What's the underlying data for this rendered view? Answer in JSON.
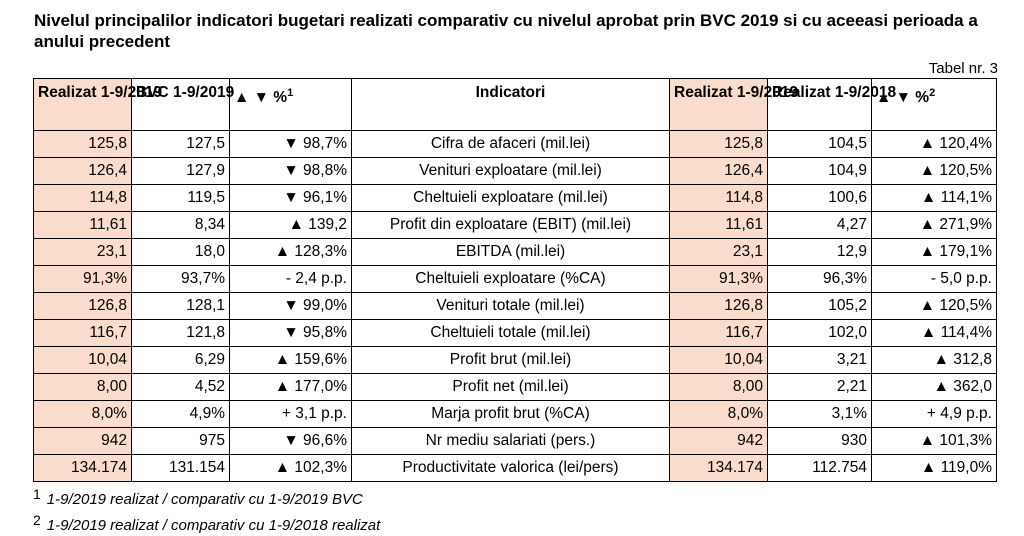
{
  "title": "Nivelul principalilor indicatori bugetari realizati comparativ cu nivelul aprobat prin BVC 2019 si cu aceeasi perioada a anului precedent",
  "table_label": "Tabel nr. 3",
  "headers": {
    "realizat": "Realizat 1-9/2019",
    "bvc": "BVC 1-9/2019",
    "pct1": "▲ ▼ %",
    "pct1_sup": "1",
    "indicatori": "Indicatori",
    "realizat2019": "Realizat 1-9/2019",
    "realizat2018": "Realizat 1-9/2018",
    "pct2": "▲ ▼ %",
    "pct2_sup": "2"
  },
  "rows": [
    {
      "r": "125,8",
      "bvc": "127,5",
      "p1": "▼ 98,7%",
      "ind": "Cifra de afaceri (mil.lei)",
      "r19": "125,8",
      "r18": "104,5",
      "p2": "▲ 120,4%"
    },
    {
      "r": "126,4",
      "bvc": "127,9",
      "p1": "▼ 98,8%",
      "ind": "Venituri exploatare (mil.lei)",
      "r19": "126,4",
      "r18": "104,9",
      "p2": "▲ 120,5%"
    },
    {
      "r": "114,8",
      "bvc": "119,5",
      "p1": "▼ 96,1%",
      "ind": "Cheltuieli exploatare (mil.lei)",
      "r19": "114,8",
      "r18": "100,6",
      "p2": "▲ 114,1%"
    },
    {
      "r": "11,61",
      "bvc": "8,34",
      "p1": "▲ 139,2",
      "ind": "Profit din exploatare (EBIT) (mil.lei)",
      "r19": "11,61",
      "r18": "4,27",
      "p2": "▲ 271,9%"
    },
    {
      "r": "23,1",
      "bvc": "18,0",
      "p1": "▲ 128,3%",
      "ind": "EBITDA (mil.lei)",
      "r19": "23,1",
      "r18": "12,9",
      "p2": "▲ 179,1%"
    },
    {
      "r": "91,3%",
      "bvc": "93,7%",
      "p1": "- 2,4 p.p.",
      "ind": "Cheltuieli exploatare (%CA)",
      "r19": "91,3%",
      "r18": "96,3%",
      "p2": "- 5,0 p.p."
    },
    {
      "r": "126,8",
      "bvc": "128,1",
      "p1": "▼ 99,0%",
      "ind": "Venituri totale (mil.lei)",
      "r19": "126,8",
      "r18": "105,2",
      "p2": "▲ 120,5%"
    },
    {
      "r": "116,7",
      "bvc": "121,8",
      "p1": "▼ 95,8%",
      "ind": "Cheltuieli totale (mil.lei)",
      "r19": "116,7",
      "r18": "102,0",
      "p2": "▲ 114,4%"
    },
    {
      "r": "10,04",
      "bvc": "6,29",
      "p1": "▲ 159,6%",
      "ind": "Profit brut (mil.lei)",
      "r19": "10,04",
      "r18": "3,21",
      "p2": "▲ 312,8"
    },
    {
      "r": "8,00",
      "bvc": "4,52",
      "p1": "▲ 177,0%",
      "ind": "Profit net (mil.lei)",
      "r19": "8,00",
      "r18": "2,21",
      "p2": "▲ 362,0"
    },
    {
      "r": "8,0%",
      "bvc": "4,9%",
      "p1": "+ 3,1 p.p.",
      "ind": "Marja profit brut (%CA)",
      "r19": "8,0%",
      "r18": "3,1%",
      "p2": "+ 4,9 p.p."
    },
    {
      "r": "942",
      "bvc": "975",
      "p1": "▼ 96,6%",
      "ind": "Nr mediu salariati (pers.)",
      "r19": "942",
      "r18": "930",
      "p2": "▲ 101,3%"
    },
    {
      "r": "134.174",
      "bvc": "131.154",
      "p1": "▲ 102,3%",
      "ind": "Productivitate valorica (lei/pers)",
      "r19": "134.174",
      "r18": "112.754",
      "p2": "▲ 119,0%"
    }
  ],
  "footnotes": [
    {
      "mark": "1",
      "text": "1-9/2019 realizat / comparativ cu 1-9/2019 BVC"
    },
    {
      "mark": "2",
      "text": "1-9/2019 realizat / comparativ cu 1-9/2018 realizat"
    }
  ],
  "colors": {
    "highlight": "#f9dccb"
  }
}
